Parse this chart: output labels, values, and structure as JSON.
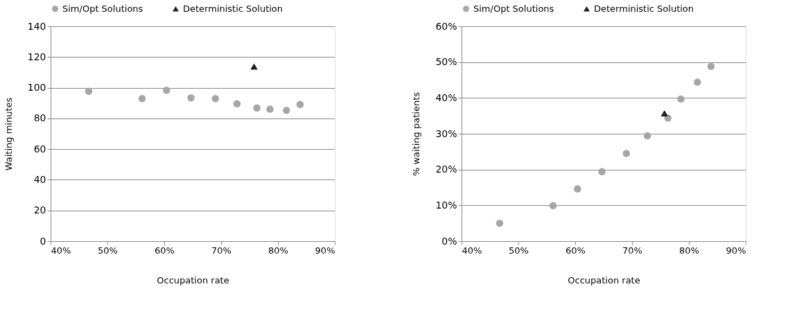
{
  "chart_data": [
    {
      "type": "scatter",
      "xlabel": "Occupation rate",
      "ylabel": "Waiting minutes",
      "legend": "top",
      "grid": "y",
      "xlim": [
        40,
        90
      ],
      "xticks": [
        {
          "value": 40,
          "label": "40%"
        },
        {
          "value": 50,
          "label": "50%"
        },
        {
          "value": 60,
          "label": "60%"
        },
        {
          "value": 70,
          "label": "70%"
        },
        {
          "value": 80,
          "label": "80%"
        },
        {
          "value": 90,
          "label": "90%"
        }
      ],
      "ylim": [
        0,
        140
      ],
      "yticks": [
        0,
        20,
        40,
        60,
        80,
        100,
        120,
        140
      ],
      "series": [
        {
          "name": "Sim/Opt Solutions",
          "color": "#a6a6a6",
          "marker": "circle",
          "x": [
            46.7,
            56.1,
            60.4,
            64.7,
            69.0,
            72.8,
            76.3,
            78.6,
            81.5,
            83.9
          ],
          "values": [
            97.7,
            92.9,
            98.3,
            93.4,
            92.9,
            89.5,
            86.8,
            86.0,
            85.2,
            89.1
          ]
        },
        {
          "name": "Deterministic Solution",
          "color": "#1f1f1f",
          "marker": "triangle",
          "x": [
            75.8
          ],
          "values": [
            113.8
          ]
        }
      ]
    },
    {
      "type": "scatter",
      "xlabel": "Occupation rate",
      "ylabel": "% waiting patients",
      "legend": "top",
      "grid": "y",
      "xlim": [
        40,
        90
      ],
      "xticks": [
        {
          "value": 40,
          "label": "40%"
        },
        {
          "value": 50,
          "label": "50%"
        },
        {
          "value": 60,
          "label": "60%"
        },
        {
          "value": 70,
          "label": "70%"
        },
        {
          "value": 80,
          "label": "80%"
        },
        {
          "value": 90,
          "label": "90%"
        }
      ],
      "ylim": [
        0,
        60
      ],
      "yticks": [
        {
          "value": 0,
          "label": "0%"
        },
        {
          "value": 10,
          "label": "10%"
        },
        {
          "value": 20,
          "label": "20%"
        },
        {
          "value": 30,
          "label": "30%"
        },
        {
          "value": 40,
          "label": "40%"
        },
        {
          "value": 50,
          "label": "50%"
        },
        {
          "value": 60,
          "label": "60%"
        }
      ],
      "series": [
        {
          "name": "Sim/Opt Solutions",
          "color": "#a6a6a6",
          "marker": "circle",
          "x": [
            46.7,
            56.1,
            60.4,
            64.7,
            69.0,
            72.7,
            76.3,
            78.6,
            81.5,
            83.9
          ],
          "values": [
            5.0,
            9.9,
            14.6,
            19.4,
            24.5,
            29.4,
            34.4,
            39.7,
            44.4,
            48.8
          ]
        },
        {
          "name": "Deterministic Solution",
          "color": "#1f1f1f",
          "marker": "triangle",
          "x": [
            75.7
          ],
          "values": [
            35.7
          ]
        }
      ]
    }
  ]
}
